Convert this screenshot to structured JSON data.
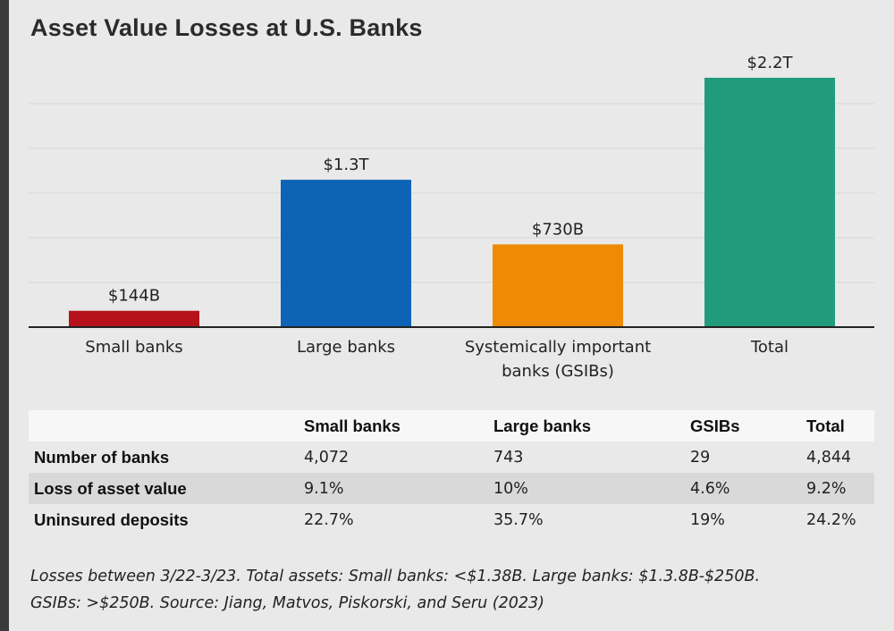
{
  "chart_data": {
    "type": "bar",
    "title": "Asset Value Losses at U.S. Banks",
    "unit": "USD trillions",
    "categories": [
      "Small banks",
      "Large banks",
      "Systemically important banks (GSIBs)",
      "Total"
    ],
    "category_lines": [
      [
        "Small banks"
      ],
      [
        "Large banks"
      ],
      [
        "Systemically important",
        "banks (GSIBs)"
      ],
      [
        "Total"
      ]
    ],
    "values": [
      0.144,
      1.3,
      0.73,
      2.2
    ],
    "data_labels": [
      "$144B",
      "$1.3T",
      "$730B",
      "$2.2T"
    ],
    "colors": [
      "#b5121b",
      "#0d63b6",
      "#ee8a04",
      "#229b7d"
    ],
    "ylim": [
      0,
      2.2
    ],
    "grid": true,
    "xlabel": "",
    "ylabel": ""
  },
  "table": {
    "headers": [
      "",
      "Small banks",
      "Large banks",
      "GSIBs",
      "Total"
    ],
    "rows": [
      {
        "label": "Number of banks",
        "values": [
          "4,072",
          "743",
          "29",
          "4,844"
        ]
      },
      {
        "label": "Loss of asset value",
        "values": [
          "9.1%",
          "10%",
          "4.6%",
          "9.2%"
        ]
      },
      {
        "label": "Uninsured deposits",
        "values": [
          "22.7%",
          "35.7%",
          "19%",
          "24.2%"
        ]
      }
    ]
  },
  "footnote": {
    "line1": "Losses between 3/22-3/23. Total assets: Small banks: <$1.38B. Large banks: $1.3.8B-$250B.",
    "line2": "GSIBs: >$250B. Source: Jiang, Matvos, Piskorski, and Seru (2023)"
  }
}
